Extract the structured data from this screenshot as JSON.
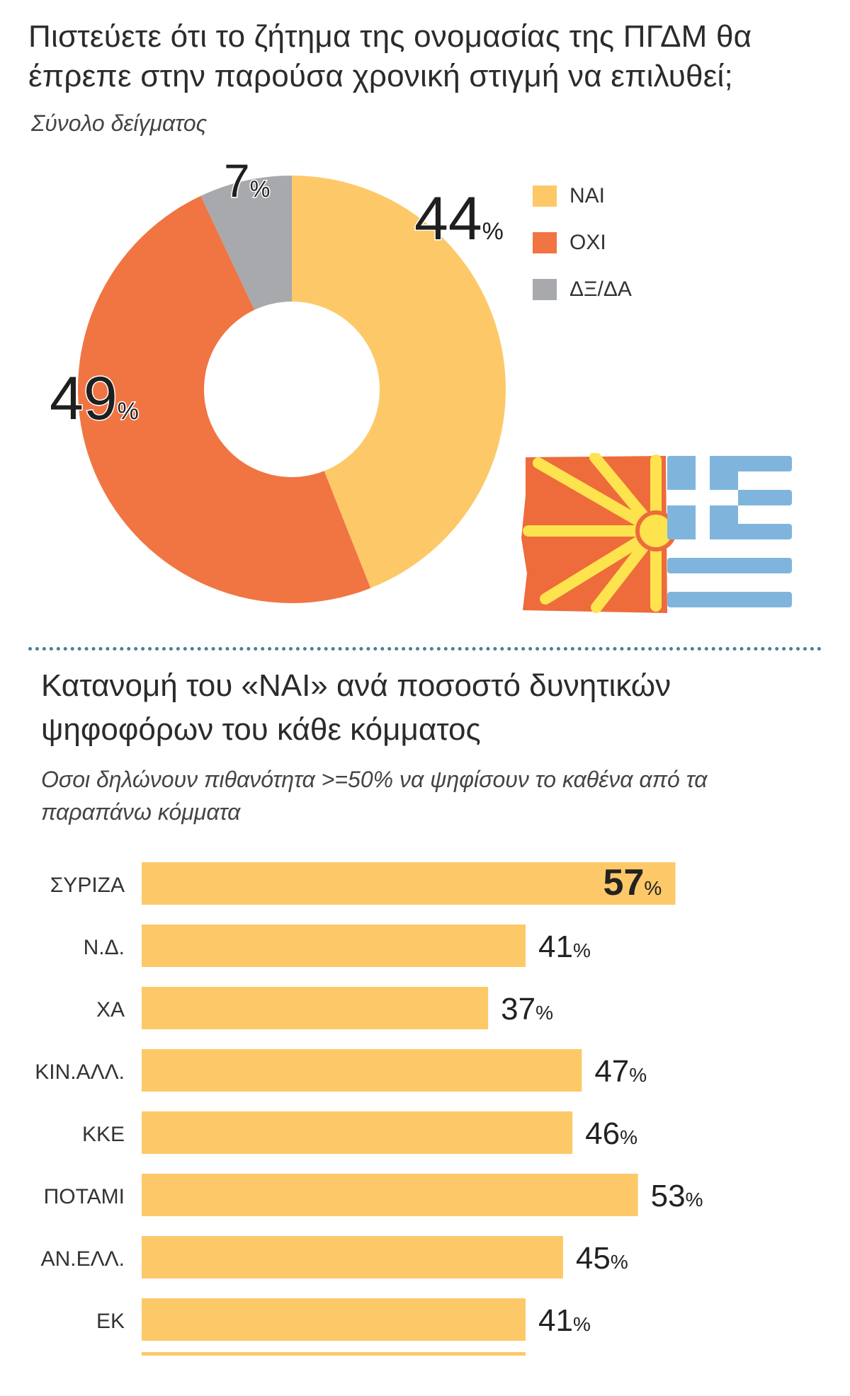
{
  "top": {
    "title": "Πιστεύετε ότι το ζήτημα της ονομασίας της ΠΓΔΜ θα έπρεπε στην παρούσα χρονική στιγμή να επιλυθεί;",
    "subtitle": "Σύνολο δείγματος"
  },
  "bottom": {
    "title": "Κατανομή του «ΝΑΙ» ανά ποσοστό δυνητικών ψηφοφόρων του κάθε κόμματος",
    "subtitle": "Οσοι δηλώνουν πιθανότητα >=50% να ψηφίσουν το καθένα από τα παραπάνω κόμματα"
  },
  "chart_data": [
    {
      "type": "pie",
      "variant": "donut",
      "categories": [
        "ΝΑΙ",
        "ΟΧΙ",
        "ΔΞ/ΔΑ"
      ],
      "values": [
        44,
        49,
        7
      ],
      "value_labels": [
        "44",
        "49",
        "7"
      ],
      "unit": "%",
      "colors": [
        "#fdc968",
        "#f07542",
        "#a7a9ac"
      ],
      "legend": "right"
    },
    {
      "type": "bar",
      "orientation": "horizontal",
      "categories": [
        "ΣΥΡΙΖΑ",
        "Ν.Δ.",
        "ΧΑ",
        "ΚΙΝ.ΑΛΛ.",
        "ΚΚΕ",
        "ΠΟΤΑΜΙ",
        "ΑΝ.ΕΛΛ.",
        "ΕΚ"
      ],
      "values": [
        57,
        41,
        37,
        47,
        46,
        53,
        45,
        41
      ],
      "value_labels": [
        "57",
        "41",
        "37",
        "47",
        "46",
        "53",
        "45",
        "41"
      ],
      "unit": "%",
      "bar_color": "#fdc968",
      "highlight": "ΣΥΡΙΖΑ",
      "xlim": [
        0,
        100
      ]
    }
  ]
}
